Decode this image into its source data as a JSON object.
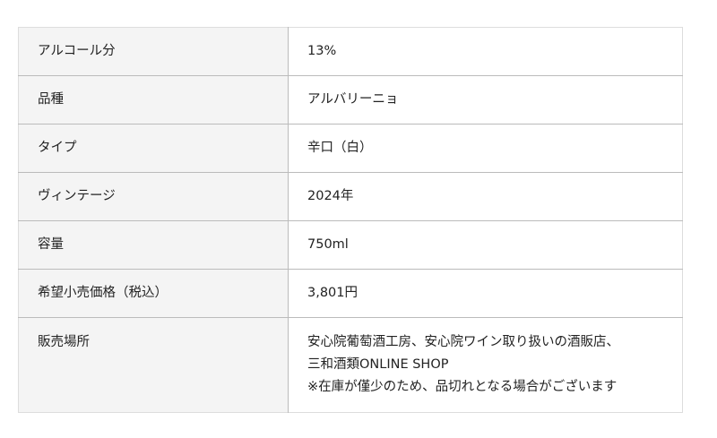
{
  "spec_table": {
    "rows": [
      {
        "label": "アルコール分",
        "value": "13%"
      },
      {
        "label": "品種",
        "value": "アルバリーニョ"
      },
      {
        "label": "タイプ",
        "value": "辛口（白）"
      },
      {
        "label": "ヴィンテージ",
        "value": "2024年"
      },
      {
        "label": "容量",
        "value": "750ml"
      },
      {
        "label": "希望小売価格（税込）",
        "value": "3,801円"
      },
      {
        "label": "販売場所",
        "value_lines": [
          "安心院葡萄酒工房、安心院ワイン取り扱いの酒販店、",
          "三和酒類ONLINE SHOP",
          "※在庫が僅少のため、品切れとなる場合がございます"
        ]
      }
    ]
  }
}
